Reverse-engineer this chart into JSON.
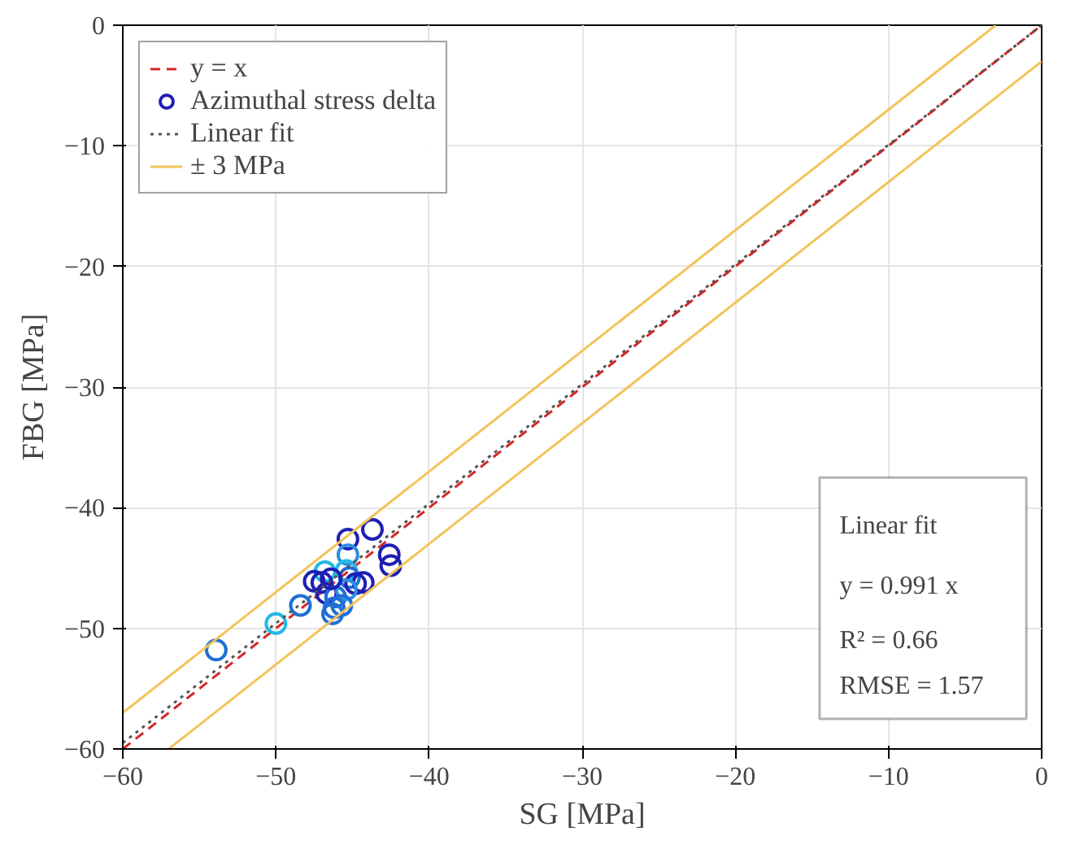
{
  "chart_data": {
    "type": "scatter",
    "xlabel": "SG [MPa]",
    "ylabel": "FBG [MPa]",
    "xlim": [
      -60,
      0
    ],
    "ylim": [
      -60,
      0
    ],
    "xticks": [
      -60,
      -50,
      -40,
      -30,
      -20,
      -10,
      0
    ],
    "yticks": [
      -60,
      -50,
      -40,
      -30,
      -20,
      -10,
      0
    ],
    "grid": true,
    "legend": "top left",
    "series": [
      {
        "name": "y = x",
        "type": "line",
        "color": "#d62728",
        "line_style": "dashed",
        "x": [
          -60,
          0
        ],
        "values": [
          -60,
          0
        ]
      },
      {
        "name": "Azimuthal stress delta",
        "type": "scatter",
        "marker": "circle",
        "color": "#1f1fb4",
        "x": [
          -53.9,
          -50.0,
          -48.4,
          -43.7,
          -45.3,
          -45.3,
          -42.6,
          -42.5,
          -46.8,
          -47.5,
          -47.0,
          -45.4,
          -45.2,
          -44.3,
          -44.8,
          -46.7,
          -46.1,
          -45.4,
          -46.2,
          -45.7,
          -46.3,
          -46.4
        ],
        "values": [
          -51.8,
          -49.6,
          -48.1,
          -41.8,
          -42.6,
          -43.9,
          -43.9,
          -44.8,
          -45.3,
          -46.1,
          -46.2,
          -45.2,
          -45.8,
          -46.2,
          -46.3,
          -47.1,
          -47.4,
          -46.8,
          -48.3,
          -48.1,
          -48.8,
          -45.9
        ],
        "colors": [
          "#1f6fd6",
          "#22b8e8",
          "#1f6fd6",
          "#1f1fb4",
          "#1f1fb4",
          "#2f8fe0",
          "#1f1fb4",
          "#1f1fb4",
          "#22b8e8",
          "#1f1fb4",
          "#1f1fb4",
          "#22b8e8",
          "#1f6fd6",
          "#1f1fb4",
          "#1f1fb4",
          "#1f1fb4",
          "#1f6fd6",
          "#2f8fe0",
          "#1f6fd6",
          "#1f6fd6",
          "#1f6fd6",
          "#1f1fb4"
        ]
      },
      {
        "name": "Linear fit",
        "type": "line",
        "color": "#555555",
        "line_style": "dotted",
        "x": [
          -60,
          0
        ],
        "values": [
          -59.5,
          0
        ]
      },
      {
        "name": "± 3 MPa",
        "type": "line",
        "color": "#f2c45a",
        "line_style": "solid",
        "x": [
          -60,
          -3
        ],
        "values": [
          -57,
          0
        ]
      },
      {
        "type": "line",
        "color": "#f2c45a",
        "line_style": "solid",
        "x": [
          -57,
          0
        ],
        "values": [
          -60,
          -3
        ]
      }
    ],
    "annotations": [
      "Linear fit",
      "y = 0.991 x",
      "R² = 0.66",
      "RMSE = 1.57"
    ]
  }
}
